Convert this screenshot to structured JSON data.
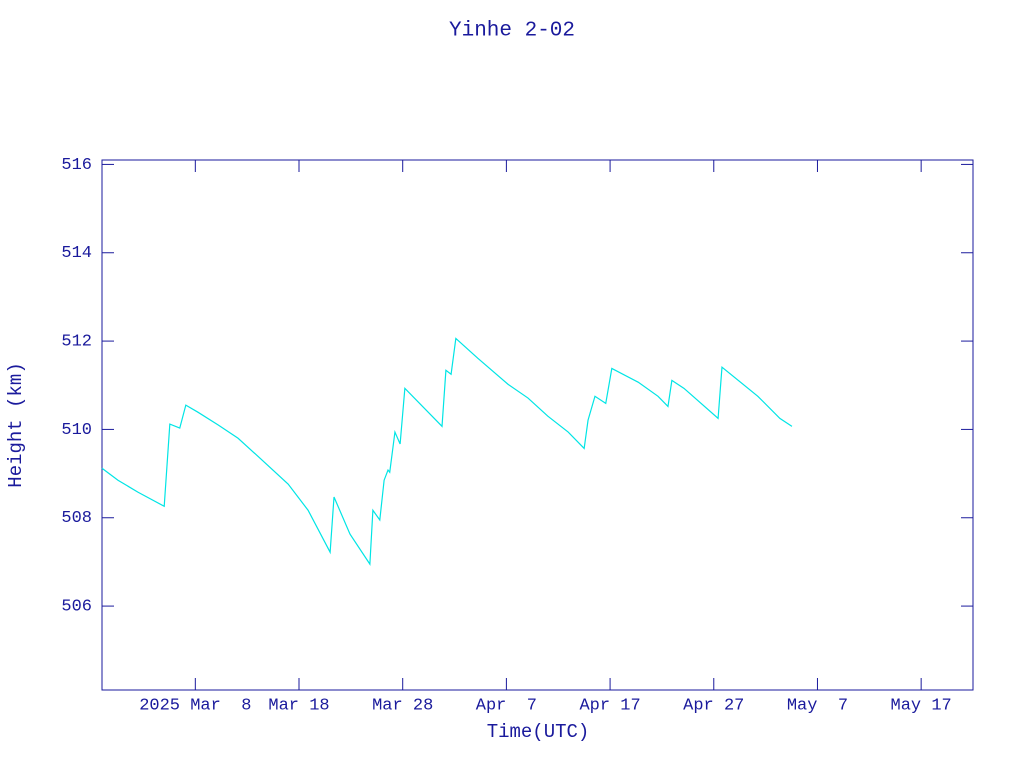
{
  "chart_data": {
    "type": "line",
    "title": "Yinhe 2-02",
    "x_label": "Time(UTC)",
    "y_label": "Height (km)",
    "x": [
      "2025-02-27T00:00Z",
      "2025-02-28T13:00Z",
      "2025-03-02T11:00Z",
      "2025-03-05T00:00Z",
      "2025-03-05T13:00Z",
      "2025-03-06T12:00Z",
      "2025-03-07T02:00Z",
      "2025-03-08T06:00Z",
      "2025-03-10T05:00Z",
      "2025-03-12T03:00Z",
      "2025-03-14T01:00Z",
      "2025-03-16T23:00Z",
      "2025-03-18T21:00Z",
      "2025-03-21T00:00Z",
      "2025-03-21T09:00Z",
      "2025-03-22T22:00Z",
      "2025-03-24T20:00Z",
      "2025-03-25T03:00Z",
      "2025-03-25T19:00Z",
      "2025-03-26T05:00Z",
      "2025-03-26T14:00Z",
      "2025-03-26T18:00Z",
      "2025-03-27T06:00Z",
      "2025-03-27T18:00Z",
      "2025-03-28T05:00Z",
      "2025-03-31T19:00Z",
      "2025-04-01T04:00Z",
      "2025-04-01T16:00Z",
      "2025-04-02T03:00Z",
      "2025-04-04T06:00Z",
      "2025-04-07T04:00Z",
      "2025-04-09T02:00Z",
      "2025-04-11T00:00Z",
      "2025-04-12T23:00Z",
      "2025-04-14T12:00Z",
      "2025-04-14T21:00Z",
      "2025-04-15T13:00Z",
      "2025-04-16T14:00Z",
      "2025-04-17T04:00Z",
      "2025-04-19T17:00Z",
      "2025-04-21T15:00Z",
      "2025-04-22T14:00Z",
      "2025-04-22T23:00Z",
      "2025-04-24T03:00Z",
      "2025-04-27T10:00Z",
      "2025-04-27T19:00Z",
      "2025-05-01T06:00Z",
      "2025-05-03T09:00Z",
      "2025-05-04T13:00Z"
    ],
    "series": [
      {
        "name": "Height",
        "color": "#00e5e5",
        "values": [
          509.12,
          508.85,
          508.58,
          508.26,
          510.12,
          510.03,
          510.55,
          510.39,
          510.1,
          509.8,
          509.39,
          508.76,
          508.17,
          507.22,
          508.47,
          507.63,
          506.95,
          508.17,
          507.95,
          508.85,
          509.08,
          509.03,
          509.94,
          509.67,
          510.93,
          510.07,
          511.34,
          511.25,
          512.06,
          511.61,
          511.02,
          510.71,
          510.3,
          509.94,
          509.57,
          510.21,
          510.75,
          510.59,
          511.38,
          511.07,
          510.75,
          510.52,
          511.11,
          510.93,
          510.25,
          511.41,
          510.75,
          510.25,
          510.07
        ]
      }
    ],
    "xlim": [
      "2025-02-27",
      "2025-05-22"
    ],
    "xticks": [
      {
        "value": "2025-03-08",
        "label": "2025 Mar  8"
      },
      {
        "value": "2025-03-18",
        "label": "Mar 18"
      },
      {
        "value": "2025-03-28",
        "label": "Mar 28"
      },
      {
        "value": "2025-04-07",
        "label": "Apr  7"
      },
      {
        "value": "2025-04-17",
        "label": "Apr 17"
      },
      {
        "value": "2025-04-27",
        "label": "Apr 27"
      },
      {
        "value": "2025-05-07",
        "label": "May  7"
      },
      {
        "value": "2025-05-17",
        "label": "May 17"
      }
    ],
    "ylim": [
      504.1,
      516.1
    ],
    "yticks": [
      506,
      508,
      510,
      512,
      514,
      516
    ]
  }
}
